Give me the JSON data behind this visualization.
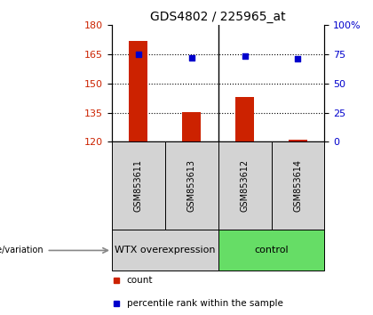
{
  "title": "GDS4802 / 225965_at",
  "samples": [
    "GSM853611",
    "GSM853613",
    "GSM853612",
    "GSM853614"
  ],
  "bar_values": [
    172.0,
    135.2,
    143.0,
    121.0
  ],
  "percentile_values": [
    75.0,
    72.0,
    73.5,
    71.0
  ],
  "ylim_left": [
    120,
    180
  ],
  "ylim_right": [
    0,
    100
  ],
  "yticks_left": [
    120,
    135,
    150,
    165,
    180
  ],
  "yticks_right": [
    0,
    25,
    50,
    75,
    100
  ],
  "ytick_labels_right": [
    "0",
    "25",
    "50",
    "75",
    "100%"
  ],
  "hlines": [
    135,
    150,
    165
  ],
  "bar_color": "#CC2200",
  "marker_color": "#0000CC",
  "bar_width": 0.35,
  "groups": [
    {
      "label": "WTX overexpression",
      "indices": [
        0,
        1
      ],
      "color": "#d3d3d3"
    },
    {
      "label": "control",
      "indices": [
        2,
        3
      ],
      "color": "#66dd66"
    }
  ],
  "genotype_label": "genotype/variation",
  "legend_items": [
    {
      "label": "count",
      "color": "#CC2200"
    },
    {
      "label": "percentile rank within the sample",
      "color": "#0000CC"
    }
  ],
  "background_color": "#ffffff",
  "sample_label_color": "#d3d3d3",
  "title_fontsize": 10,
  "tick_fontsize": 8,
  "sample_fontsize": 7,
  "group_fontsize": 8,
  "legend_fontsize": 7.5
}
